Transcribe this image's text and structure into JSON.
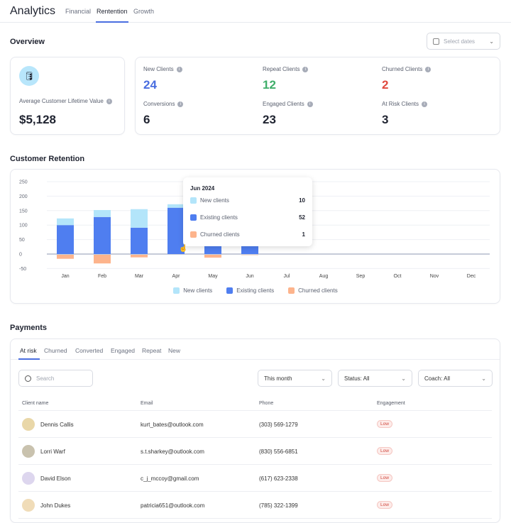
{
  "header": {
    "title": "Analytics",
    "tabs": [
      "Financial",
      "Rentention",
      "Growth"
    ],
    "active_tab": "Rentention"
  },
  "overview": {
    "title": "Overview",
    "date_picker": {
      "placeholder": "Select dates",
      "icon": "calendar-icon"
    },
    "ltv": {
      "icon": "database-icon",
      "label": "Average Customer Lifetime Value",
      "value": "$5,128"
    },
    "stats": [
      {
        "label": "New Clients",
        "value": "24",
        "color": "#4a6ee0"
      },
      {
        "label": "Repeat Clients",
        "value": "12",
        "color": "#3fae6a"
      },
      {
        "label": "Churned Clients",
        "value": "2",
        "color": "#e04a3f"
      },
      {
        "label": "Conversions",
        "value": "6",
        "color": "#1f2330"
      },
      {
        "label": "Engaged Clients",
        "value": "23",
        "color": "#1f2330"
      },
      {
        "label": "At Risk Clients",
        "value": "3",
        "color": "#1f2330"
      }
    ]
  },
  "retention": {
    "title": "Customer Retention",
    "tooltip": {
      "title": "Jun 2024",
      "rows": [
        {
          "label": "New clients",
          "value": "10"
        },
        {
          "label": "Existing clients",
          "value": "52"
        },
        {
          "label": "Churned clients",
          "value": "1"
        }
      ]
    }
  },
  "chart_data": {
    "type": "bar",
    "stacked": true,
    "categories": [
      "Jan",
      "Feb",
      "Mar",
      "Apr",
      "May",
      "Jun",
      "Jul",
      "Aug",
      "Sep",
      "Oct",
      "Nov",
      "Dec"
    ],
    "series": [
      {
        "name": "New clients",
        "color": "#b3e5fa",
        "values": [
          23,
          24,
          64,
          12,
          null,
          10,
          0,
          0,
          0,
          0,
          0,
          0
        ]
      },
      {
        "name": "Existing clients",
        "color": "#4f7ef0",
        "values": [
          100,
          128,
          91,
          160,
          null,
          52,
          0,
          0,
          0,
          0,
          0,
          0
        ]
      },
      {
        "name": "Churned clients",
        "color": "#fdb48c",
        "values": [
          -14,
          -30,
          -9,
          0,
          -10,
          -1,
          0,
          0,
          0,
          0,
          0,
          0
        ]
      }
    ],
    "yticks": [
      250,
      200,
      150,
      100,
      50,
      0,
      -50
    ],
    "ylim": [
      -50,
      250
    ],
    "grid": true,
    "legend": "bottom"
  },
  "payments": {
    "title": "Payments",
    "tabs": [
      "At risk",
      "Churned",
      "Converted",
      "Engaged",
      "Repeat",
      "New"
    ],
    "active_tab": "At risk",
    "search_placeholder": "Search",
    "filters": [
      "This month",
      "Status: All",
      "Coach: All"
    ],
    "columns": [
      "Client name",
      "Email",
      "Phone",
      "Engagement"
    ],
    "rows": [
      {
        "name": "Dennis Callis",
        "email": "kurt_bates@outlook.com",
        "phone": "(303) 569-1279",
        "engagement": "Low"
      },
      {
        "name": "Lorri Warf",
        "email": "s.t.sharkey@outlook.com",
        "phone": "(830) 556-6851",
        "engagement": "Low"
      },
      {
        "name": "David Elson",
        "email": "c_j_mccoy@gmail.com",
        "phone": "(617) 623-2338",
        "engagement": "Low"
      },
      {
        "name": "John Dukes",
        "email": "patricia651@outlook.com",
        "phone": "(785) 322-1399",
        "engagement": "Low"
      }
    ]
  }
}
